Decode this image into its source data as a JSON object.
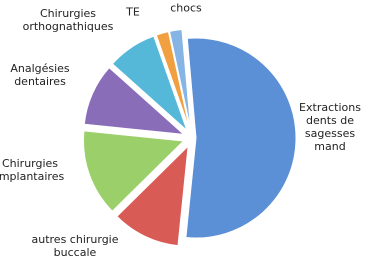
{
  "chart_data": {
    "type": "pie",
    "categories": [
      "Extractions\ndents de\nsagesses mand",
      "autres chirurgie\nbuccale",
      "Chirurgies\nimplantaires",
      "Analgésies\ndentaires",
      "Chirurgies\northognathiques",
      "TE",
      "chocs"
    ],
    "values": [
      53,
      11,
      14,
      10,
      8,
      2,
      2
    ],
    "colors": [
      "#5b8fd6",
      "#d95b55",
      "#9bcf6a",
      "#8a6db8",
      "#55b8d8",
      "#f0a040",
      "#86b4e4"
    ]
  }
}
